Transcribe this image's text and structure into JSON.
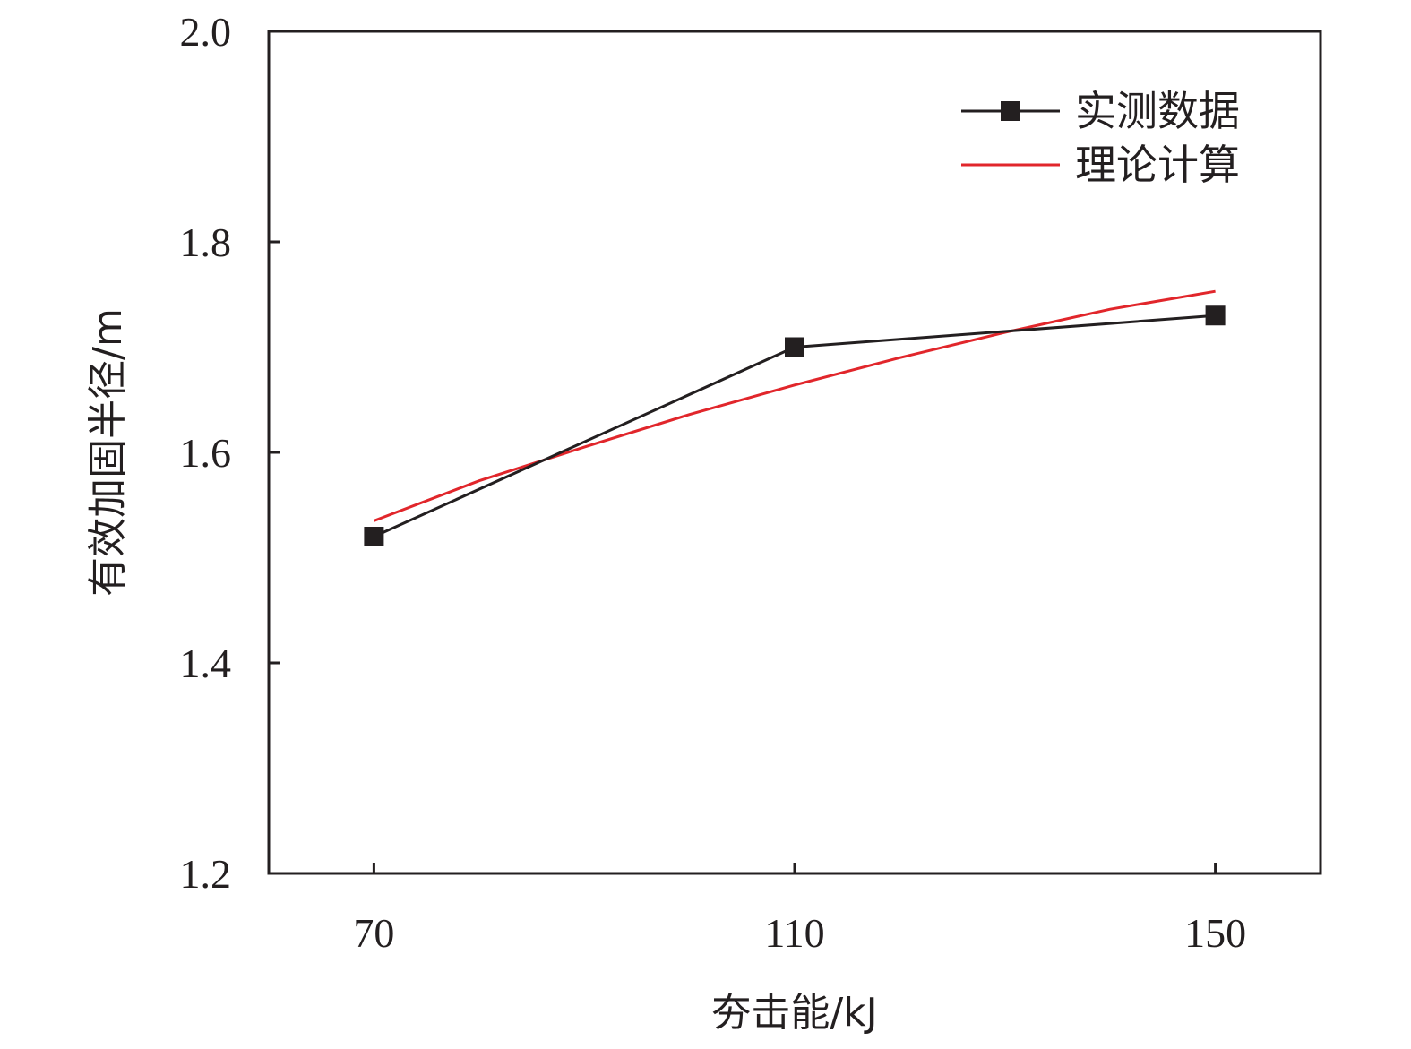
{
  "chart_data": {
    "type": "line",
    "xlabel": "夯击能/kJ",
    "ylabel": "有效加固半径/m",
    "xlim": [
      60,
      160
    ],
    "ylim": [
      1.2,
      2.0
    ],
    "x_ticks": [
      "70",
      "110",
      "150"
    ],
    "y_ticks": [
      "1.2",
      "1.4",
      "1.6",
      "1.8",
      "2.0"
    ],
    "grid": false,
    "legend_position": "top-right",
    "series": [
      {
        "name": "实测数据",
        "color": "#231f20",
        "marker": "square",
        "x": [
          70,
          110,
          150
        ],
        "y": [
          1.52,
          1.7,
          1.73
        ]
      },
      {
        "name": "理论计算",
        "color": "#e1262b",
        "marker": "none",
        "x": [
          70,
          80,
          90,
          100,
          110,
          120,
          130,
          140,
          150
        ],
        "y": [
          1.535,
          1.573,
          1.605,
          1.636,
          1.664,
          1.69,
          1.714,
          1.736,
          1.753
        ]
      }
    ]
  }
}
